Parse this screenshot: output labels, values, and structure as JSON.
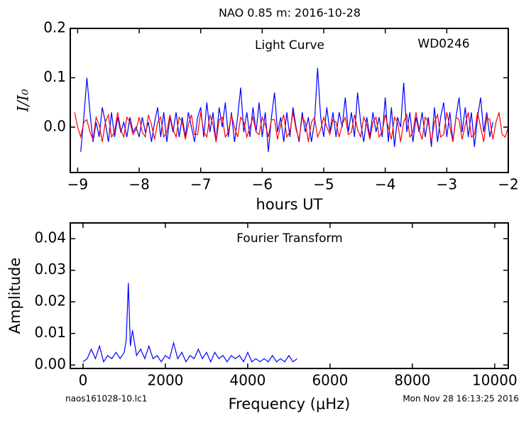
{
  "chart_data": [
    {
      "type": "line",
      "title": "NAO 0.85 m:  2016-10-28",
      "annotations": [
        "Light Curve",
        "WD0246"
      ],
      "xlabel": "hours UT",
      "ylabel": "I/I₀",
      "xlim": [
        -9.12,
        -2.0
      ],
      "ylim": [
        -0.092,
        0.2
      ],
      "xticks": [
        {
          "value": -9,
          "label": "−9"
        },
        {
          "value": -8,
          "label": "−8"
        },
        {
          "value": -7,
          "label": "−7"
        },
        {
          "value": -6,
          "label": "−6"
        },
        {
          "value": -5,
          "label": "−5"
        },
        {
          "value": -4,
          "label": "−4"
        },
        {
          "value": -3,
          "label": "−3"
        },
        {
          "value": -2,
          "label": "−2"
        }
      ],
      "yticks": [
        {
          "value": 0,
          "label": "0.0"
        },
        0.1,
        0.2
      ],
      "series": [
        {
          "color": "#0000ff",
          "x": [
            -8.95,
            -8.9,
            -8.85,
            -8.8,
            -8.75,
            -8.7,
            -8.65,
            -8.6,
            -8.55,
            -8.5,
            -8.45,
            -8.4,
            -8.35,
            -8.3,
            -8.25,
            -8.2,
            -8.15,
            -8.1,
            -8.05,
            -8.0,
            -7.95,
            -7.9,
            -7.85,
            -7.8,
            -7.75,
            -7.7,
            -7.65,
            -7.6,
            -7.55,
            -7.5,
            -7.45,
            -7.4,
            -7.35,
            -7.3,
            -7.25,
            -7.2,
            -7.15,
            -7.1,
            -7.05,
            -7.0,
            -6.95,
            -6.9,
            -6.85,
            -6.8,
            -6.75,
            -6.7,
            -6.65,
            -6.6,
            -6.55,
            -6.5,
            -6.45,
            -6.4,
            -6.35,
            -6.3,
            -6.25,
            -6.2,
            -6.15,
            -6.1,
            -6.05,
            -6.0,
            -5.95,
            -5.9,
            -5.85,
            -5.8,
            -5.75,
            -5.7,
            -5.65,
            -5.6,
            -5.55,
            -5.5,
            -5.45,
            -5.4,
            -5.35,
            -5.3,
            -5.25,
            -5.2,
            -5.15,
            -5.1,
            -5.05,
            -5.0,
            -4.95,
            -4.9,
            -4.85,
            -4.8,
            -4.75,
            -4.7,
            -4.65,
            -4.6,
            -4.55,
            -4.5,
            -4.45,
            -4.4,
            -4.35,
            -4.3,
            -4.25,
            -4.2,
            -4.15,
            -4.1,
            -4.05,
            -4.0,
            -3.95,
            -3.9,
            -3.85,
            -3.8,
            -3.75,
            -3.7,
            -3.65,
            -3.6,
            -3.55,
            -3.5,
            -3.45,
            -3.4,
            -3.35,
            -3.3,
            -3.25,
            -3.2,
            -3.15,
            -3.1,
            -3.05,
            -3.0,
            -2.95,
            -2.9,
            -2.85,
            -2.8,
            -2.75,
            -2.7,
            -2.65,
            -2.6,
            -2.55,
            -2.5,
            -2.45,
            -2.4,
            -2.35,
            -2.3,
            -2.25
          ],
          "values": [
            -0.05,
            0.02,
            0.1,
            0.03,
            -0.03,
            0.01,
            -0.02,
            0.04,
            0.01,
            -0.03,
            0.03,
            -0.02,
            0.02,
            -0.01,
            0.01,
            -0.02,
            0.02,
            -0.01,
            0.0,
            -0.02,
            0.02,
            -0.01,
            0.01,
            -0.03,
            0.01,
            0.04,
            -0.02,
            0.03,
            -0.03,
            0.02,
            -0.01,
            0.03,
            -0.02,
            0.02,
            -0.02,
            0.03,
            0.0,
            -0.03,
            0.02,
            0.04,
            -0.02,
            0.05,
            -0.01,
            0.03,
            -0.03,
            0.04,
            0.0,
            0.05,
            -0.02,
            0.03,
            -0.03,
            0.02,
            0.08,
            -0.01,
            0.03,
            -0.02,
            0.04,
            -0.01,
            0.05,
            -0.02,
            0.03,
            -0.05,
            0.02,
            0.07,
            -0.01,
            0.02,
            -0.03,
            0.03,
            -0.02,
            0.04,
            0.0,
            -0.03,
            0.03,
            -0.01,
            0.02,
            -0.03,
            0.01,
            0.12,
            0.02,
            -0.02,
            0.04,
            -0.01,
            0.03,
            -0.02,
            0.03,
            0.0,
            0.06,
            -0.01,
            0.03,
            -0.02,
            0.07,
            0.01,
            -0.03,
            0.02,
            -0.02,
            0.03,
            -0.01,
            0.02,
            -0.02,
            0.06,
            -0.03,
            0.04,
            -0.04,
            0.02,
            0.0,
            0.09,
            -0.01,
            0.03,
            -0.03,
            0.02,
            -0.01,
            0.03,
            -0.02,
            0.02,
            -0.04,
            0.04,
            -0.03,
            0.02,
            0.05,
            -0.02,
            0.03,
            -0.03,
            0.02,
            0.06,
            -0.01,
            0.04,
            -0.02,
            0.03,
            -0.04,
            0.02,
            0.06,
            -0.01,
            0.03,
            -0.02,
            0.01
          ]
        },
        {
          "color": "#ff0000",
          "x": [
            -9.05,
            -9.0,
            -8.95,
            -8.9,
            -8.85,
            -8.8,
            -8.75,
            -8.7,
            -8.65,
            -8.6,
            -8.55,
            -8.5,
            -8.45,
            -8.4,
            -8.35,
            -8.3,
            -8.25,
            -8.2,
            -8.15,
            -8.1,
            -8.05,
            -8.0,
            -7.95,
            -7.9,
            -7.85,
            -7.8,
            -7.75,
            -7.7,
            -7.65,
            -7.6,
            -7.55,
            -7.5,
            -7.45,
            -7.4,
            -7.35,
            -7.3,
            -7.25,
            -7.2,
            -7.15,
            -7.1,
            -7.05,
            -7.0,
            -6.95,
            -6.9,
            -6.85,
            -6.8,
            -6.75,
            -6.7,
            -6.65,
            -6.6,
            -6.55,
            -6.5,
            -6.45,
            -6.4,
            -6.35,
            -6.3,
            -6.25,
            -6.2,
            -6.15,
            -6.1,
            -6.05,
            -6.0,
            -5.95,
            -5.9,
            -5.85,
            -5.8,
            -5.75,
            -5.7,
            -5.65,
            -5.6,
            -5.55,
            -5.5,
            -5.45,
            -5.4,
            -5.35,
            -5.3,
            -5.25,
            -5.2,
            -5.15,
            -5.1,
            -5.05,
            -5.0,
            -4.95,
            -4.9,
            -4.85,
            -4.8,
            -4.75,
            -4.7,
            -4.65,
            -4.6,
            -4.55,
            -4.5,
            -4.45,
            -4.4,
            -4.35,
            -4.3,
            -4.25,
            -4.2,
            -4.15,
            -4.1,
            -4.05,
            -4.0,
            -3.95,
            -3.9,
            -3.85,
            -3.8,
            -3.75,
            -3.7,
            -3.65,
            -3.6,
            -3.55,
            -3.5,
            -3.45,
            -3.4,
            -3.35,
            -3.3,
            -3.25,
            -3.2,
            -3.15,
            -3.1,
            -3.05,
            -3.0,
            -2.95,
            -2.9,
            -2.85,
            -2.8,
            -2.75,
            -2.7,
            -2.65,
            -2.6,
            -2.55,
            -2.5,
            -2.45,
            -2.4,
            -2.35,
            -2.3,
            -2.25,
            -2.2,
            -2.15,
            -2.1,
            -2.05,
            -2.0
          ],
          "values": [
            0.03,
            0.0,
            -0.02,
            0.01,
            0.015,
            -0.01,
            -0.025,
            0.02,
            0.005,
            -0.03,
            0.01,
            0.025,
            -0.02,
            -0.01,
            0.03,
            -0.005,
            -0.02,
            0.02,
            0.01,
            -0.015,
            -0.005,
            0.02,
            -0.01,
            -0.02,
            0.025,
            0.005,
            -0.025,
            0.01,
            0.02,
            -0.02,
            -0.01,
            0.025,
            -0.005,
            -0.02,
            0.02,
            0.01,
            -0.025,
            0.005,
            0.025,
            -0.015,
            -0.015,
            0.03,
            -0.01,
            -0.02,
            0.025,
            0.005,
            -0.03,
            0.015,
            0.02,
            -0.02,
            -0.01,
            0.025,
            0.0,
            -0.02,
            0.02,
            0.01,
            -0.02,
            0.0,
            0.02,
            -0.01,
            -0.015,
            0.02,
            0.005,
            -0.02,
            0.015,
            0.015,
            -0.025,
            0.005,
            0.025,
            -0.02,
            -0.01,
            0.03,
            -0.005,
            -0.025,
            0.02,
            0.01,
            -0.03,
            0.01,
            0.02,
            -0.02,
            -0.005,
            0.02,
            0.0,
            -0.015,
            0.015,
            0.01,
            -0.02,
            0.005,
            0.02,
            -0.015,
            -0.01,
            0.025,
            -0.005,
            -0.02,
            0.02,
            0.005,
            -0.025,
            0.01,
            0.02,
            -0.02,
            -0.01,
            0.025,
            0.0,
            -0.025,
            0.02,
            0.01,
            -0.03,
            0.01,
            0.025,
            -0.02,
            -0.01,
            0.03,
            -0.005,
            -0.025,
            0.02,
            0.01,
            -0.03,
            0.01,
            0.025,
            -0.02,
            -0.015,
            0.03,
            0.0,
            -0.03,
            0.02,
            0.015,
            -0.025,
            0.005,
            0.03,
            -0.02,
            -0.015,
            0.03,
            0.0,
            -0.03,
            0.02,
            0.015,
            -0.025,
            0.01,
            0.03,
            -0.015,
            -0.02,
            0.0
          ]
        }
      ]
    },
    {
      "type": "line",
      "annotations": [
        "Fourier Transform"
      ],
      "xlabel": "Frequency (μHz)",
      "ylabel": "Amplitude",
      "xlim": [
        -310,
        10330
      ],
      "ylim": [
        -0.0011,
        0.045
      ],
      "xticks": [
        0,
        2000,
        4000,
        6000,
        8000,
        10000
      ],
      "yticks": [
        {
          "value": 0,
          "label": "0.00"
        },
        0.01,
        0.02,
        0.03,
        0.04
      ],
      "series": [
        {
          "color": "#0000ff",
          "x": [
            0,
            100,
            200,
            300,
            400,
            500,
            600,
            700,
            800,
            900,
            1000,
            1050,
            1100,
            1150,
            1200,
            1300,
            1400,
            1500,
            1600,
            1700,
            1800,
            1900,
            2000,
            2100,
            2200,
            2300,
            2400,
            2500,
            2600,
            2700,
            2800,
            2900,
            3000,
            3100,
            3200,
            3300,
            3400,
            3500,
            3600,
            3700,
            3800,
            3900,
            4000,
            4100,
            4200,
            4300,
            4400,
            4500,
            4600,
            4700,
            4800,
            4900,
            5000,
            5100,
            5200
          ],
          "values": [
            0.001,
            0.002,
            0.005,
            0.002,
            0.006,
            0.001,
            0.003,
            0.002,
            0.004,
            0.002,
            0.004,
            0.008,
            0.026,
            0.006,
            0.011,
            0.003,
            0.005,
            0.002,
            0.006,
            0.002,
            0.003,
            0.001,
            0.003,
            0.002,
            0.007,
            0.002,
            0.004,
            0.001,
            0.003,
            0.002,
            0.005,
            0.002,
            0.004,
            0.001,
            0.004,
            0.002,
            0.003,
            0.001,
            0.003,
            0.002,
            0.003,
            0.001,
            0.004,
            0.001,
            0.002,
            0.001,
            0.002,
            0.001,
            0.003,
            0.001,
            0.002,
            0.001,
            0.003,
            0.001,
            0.002
          ]
        }
      ]
    }
  ],
  "footer": {
    "left": "naos161028-10.lc1",
    "right": "Mon Nov 28 16:13:25 2016"
  }
}
